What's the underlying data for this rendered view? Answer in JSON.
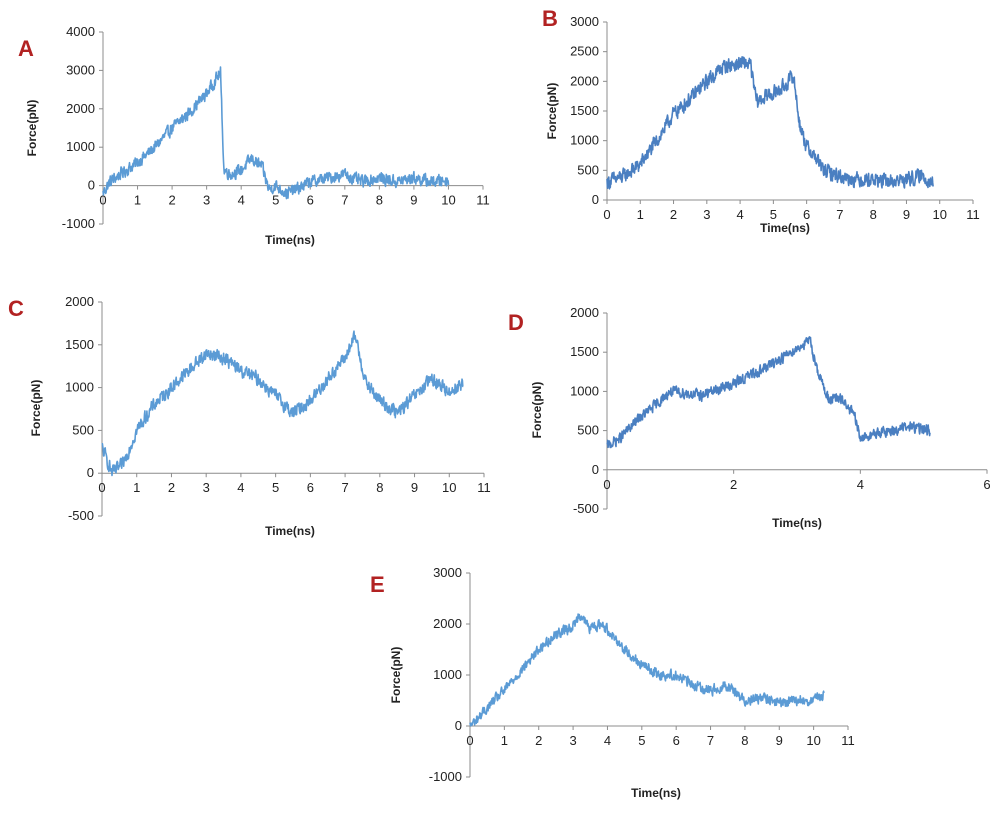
{
  "figure": {
    "letter_color": "#b22222"
  },
  "chart_data": [
    {
      "panel": "A",
      "type": "line",
      "xlabel": "Time(ns)",
      "ylabel": "Force(pN)",
      "xlim": [
        0,
        11
      ],
      "ylim": [
        -1000,
        4000
      ],
      "xticks": [
        0,
        1,
        2,
        3,
        4,
        5,
        6,
        7,
        8,
        9,
        10,
        11
      ],
      "yticks": [
        -1000,
        0,
        1000,
        2000,
        3000,
        4000
      ],
      "color": "#5b9bd5",
      "noise": 140,
      "series": [
        {
          "x": [
            0,
            0.2,
            0.5,
            1,
            1.5,
            2,
            2.5,
            3,
            3.4,
            3.5,
            3.7,
            4,
            4.3,
            4.6,
            4.8,
            5,
            5.3,
            5.6,
            6,
            6.5,
            7,
            7.2,
            7.5,
            8,
            8.5,
            9,
            9.5,
            10
          ],
          "y": [
            -200,
            100,
            300,
            600,
            1000,
            1500,
            1900,
            2400,
            2950,
            400,
            300,
            400,
            700,
            500,
            -100,
            0,
            -200,
            -100,
            100,
            200,
            300,
            200,
            100,
            200,
            100,
            200,
            100,
            150
          ]
        }
      ]
    },
    {
      "panel": "B",
      "type": "line",
      "xlabel": "Time(ns)",
      "ylabel": "Force(pN)",
      "xlim": [
        0,
        11
      ],
      "ylim": [
        0,
        3000
      ],
      "xticks": [
        0,
        1,
        2,
        3,
        4,
        5,
        6,
        7,
        8,
        9,
        10,
        11
      ],
      "yticks": [
        0,
        500,
        1000,
        1500,
        2000,
        2500,
        3000
      ],
      "color": "#4a7fc1",
      "noise": 110,
      "series": [
        {
          "x": [
            0,
            0.5,
            1,
            1.5,
            2,
            2.5,
            3,
            3.5,
            4,
            4.3,
            4.5,
            4.8,
            5,
            5.3,
            5.6,
            5.8,
            6,
            6.3,
            6.5,
            7,
            7.5,
            8,
            8.5,
            9,
            9.5,
            9.8
          ],
          "y": [
            300,
            400,
            600,
            1000,
            1450,
            1700,
            2000,
            2250,
            2300,
            2300,
            1650,
            1750,
            1800,
            1900,
            2100,
            1250,
            900,
            700,
            500,
            400,
            350,
            350,
            300,
            350,
            400,
            300
          ]
        }
      ]
    },
    {
      "panel": "C",
      "type": "line",
      "xlabel": "Time(ns)",
      "ylabel": "Force(pN)",
      "xlim": [
        0,
        11
      ],
      "ylim": [
        -500,
        2000
      ],
      "xticks": [
        0,
        1,
        2,
        3,
        4,
        5,
        6,
        7,
        8,
        9,
        10,
        11
      ],
      "yticks": [
        -500,
        0,
        500,
        1000,
        1500,
        2000
      ],
      "color": "#5b9bd5",
      "noise": 70,
      "series": [
        {
          "x": [
            0,
            0.3,
            0.6,
            1,
            1.5,
            2,
            2.5,
            3,
            3.5,
            4,
            4.5,
            5,
            5.5,
            6,
            6.5,
            7,
            7.3,
            7.6,
            8,
            8.5,
            9,
            9.5,
            10,
            10.4
          ],
          "y": [
            300,
            0,
            100,
            500,
            800,
            1000,
            1200,
            1400,
            1350,
            1200,
            1100,
            900,
            700,
            850,
            1100,
            1350,
            1600,
            1050,
            850,
            700,
            900,
            1100,
            950,
            1050
          ]
        }
      ]
    },
    {
      "panel": "D",
      "type": "line",
      "xlabel": "Time(ns)",
      "ylabel": "Force(pN)",
      "xlim": [
        0,
        6
      ],
      "ylim": [
        -500,
        2000
      ],
      "xticks": [
        0,
        2,
        4,
        6
      ],
      "yticks": [
        -500,
        0,
        500,
        1000,
        1500,
        2000
      ],
      "color": "#4a7fc1",
      "noise": 60,
      "series": [
        {
          "x": [
            0,
            0.2,
            0.5,
            0.8,
            1,
            1.5,
            2,
            2.5,
            3,
            3.2,
            3.35,
            3.5,
            3.7,
            3.9,
            4,
            4.2,
            4.5,
            4.8,
            5.1
          ],
          "y": [
            300,
            400,
            650,
            850,
            1000,
            950,
            1100,
            1300,
            1550,
            1650,
            1200,
            900,
            900,
            700,
            400,
            450,
            500,
            550,
            500
          ]
        }
      ]
    },
    {
      "panel": "E",
      "type": "line",
      "xlabel": "Time(ns)",
      "ylabel": "Force(pN)",
      "xlim": [
        0,
        11
      ],
      "ylim": [
        -1000,
        3000
      ],
      "xticks": [
        0,
        1,
        2,
        3,
        4,
        5,
        6,
        7,
        8,
        9,
        10,
        11
      ],
      "yticks": [
        -1000,
        0,
        1000,
        2000,
        3000
      ],
      "color": "#5b9bd5",
      "noise": 90,
      "series": [
        {
          "x": [
            0,
            0.3,
            0.7,
            1,
            1.5,
            2,
            2.5,
            3,
            3.2,
            3.5,
            3.8,
            4,
            4.5,
            5,
            5.5,
            6,
            6.5,
            7,
            7.5,
            8,
            8.5,
            9,
            9.5,
            10,
            10.3
          ],
          "y": [
            0,
            200,
            500,
            700,
            1100,
            1500,
            1800,
            1950,
            2200,
            1900,
            2000,
            1900,
            1500,
            1200,
            1000,
            1000,
            800,
            700,
            800,
            500,
            550,
            450,
            500,
            500,
            600
          ]
        }
      ]
    }
  ]
}
